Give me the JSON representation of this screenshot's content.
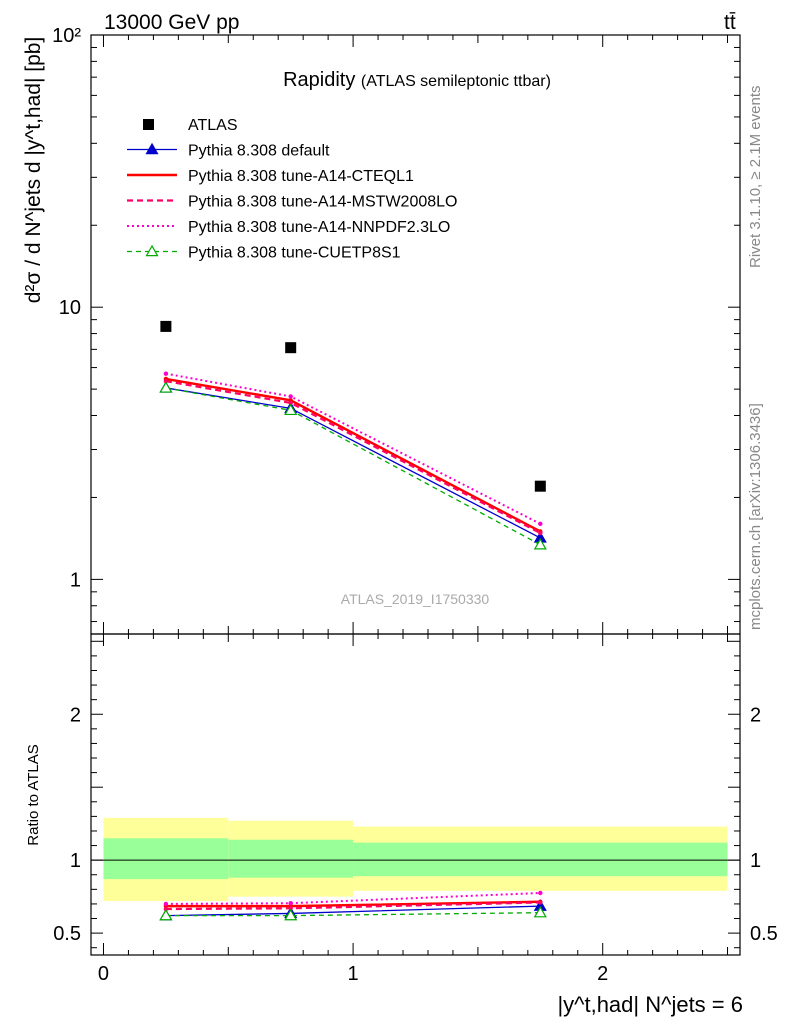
{
  "header": {
    "process": "13000 GeV pp",
    "topright": "tt̄"
  },
  "side": {
    "rivet": "Rivet 3.1.10, ≥ 2.1M events",
    "mcplots": "mcplots.cern.ch [arXiv:1306.3436]"
  },
  "analysis_id": "ATLAS_2019_I1750330",
  "title": {
    "main": "Rapidity",
    "sub": "(ATLAS semileptonic ttbar)"
  },
  "colors": {
    "data": "#000000",
    "default": "#0000cc",
    "cteql1": "#ff0000",
    "mstw": "#ff0066",
    "nnpdf": "#ff00cc",
    "cuetp8s1": "#00aa00",
    "band_inner": "#99ff99",
    "band_outer": "#ffff99"
  },
  "chart_data": [
    {
      "type": "line",
      "panel": "main",
      "ylabel": "d²σ / d N^jets d |y^t,had| [pb]",
      "yscale": "log",
      "ylim": [
        0.63,
        100
      ],
      "xlim": [
        -0.05,
        2.55
      ],
      "ytick_labels": [
        "1",
        "10",
        "10²"
      ],
      "legend_position": "top-left",
      "x": [
        0.25,
        0.75,
        1.75
      ],
      "series": [
        {
          "name": "ATLAS",
          "key": "data",
          "values": [
            8.5,
            7.1,
            2.2
          ]
        },
        {
          "name": "Pythia 8.308 default",
          "key": "default",
          "values": [
            5.05,
            4.25,
            1.42
          ]
        },
        {
          "name": "Pythia 8.308 tune-A14-CTEQL1",
          "key": "cteql1",
          "values": [
            5.45,
            4.55,
            1.5
          ]
        },
        {
          "name": "Pythia 8.308 tune-A14-MSTW2008LO",
          "key": "mstw",
          "values": [
            5.35,
            4.45,
            1.48
          ]
        },
        {
          "name": "Pythia 8.308 tune-A14-NNPDF2.3LO",
          "key": "nnpdf",
          "values": [
            5.7,
            4.7,
            1.6
          ]
        },
        {
          "name": "Pythia 8.308 tune-CUETP8S1",
          "key": "cuetp8s1",
          "values": [
            5.05,
            4.18,
            1.34
          ]
        }
      ]
    },
    {
      "type": "line",
      "panel": "ratio",
      "ylabel": "Ratio to ATLAS",
      "xlabel": "|y^t,had| N^jets = 6",
      "ylim": [
        0.35,
        2.55
      ],
      "xlim": [
        -0.05,
        2.55
      ],
      "ytick_labels": [
        "0.5",
        "1",
        "2"
      ],
      "xtick_labels": [
        "0",
        "1",
        "2"
      ],
      "bins": [
        0,
        0.5,
        1,
        2.5
      ],
      "band_inner": [
        [
          0.87,
          1.15
        ],
        [
          0.88,
          1.14
        ],
        [
          0.89,
          1.12
        ]
      ],
      "band_outer": [
        [
          0.72,
          1.29
        ],
        [
          0.75,
          1.27
        ],
        [
          0.79,
          1.23
        ]
      ],
      "x": [
        0.25,
        0.75,
        1.75
      ],
      "series": [
        {
          "name": "Pythia 8.308 default",
          "key": "default",
          "values": [
            0.62,
            0.635,
            0.685
          ]
        },
        {
          "name": "Pythia 8.308 tune-A14-CTEQL1",
          "key": "cteql1",
          "values": [
            0.685,
            0.685,
            0.715
          ]
        },
        {
          "name": "Pythia 8.308 tune-A14-MSTW2008LO",
          "key": "mstw",
          "values": [
            0.665,
            0.67,
            0.71
          ]
        },
        {
          "name": "Pythia 8.308 tune-A14-NNPDF2.3LO",
          "key": "nnpdf",
          "values": [
            0.7,
            0.705,
            0.775
          ]
        },
        {
          "name": "Pythia 8.308 tune-CUETP8S1",
          "key": "cuetp8s1",
          "values": [
            0.62,
            0.62,
            0.64
          ]
        }
      ]
    }
  ]
}
